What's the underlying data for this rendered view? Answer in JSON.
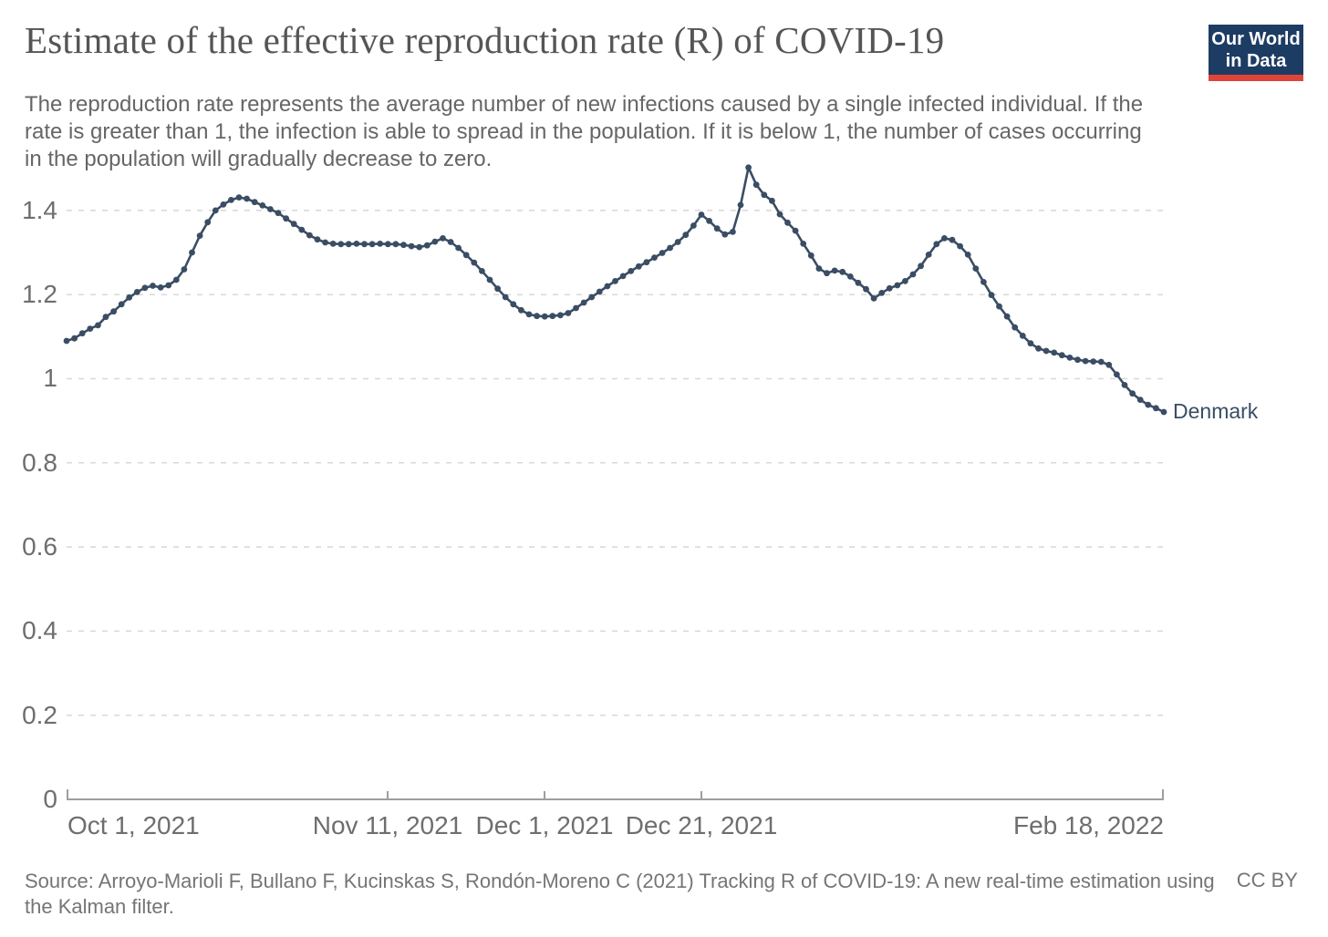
{
  "header": {
    "title": "Estimate of the effective reproduction rate (R) of COVID-19",
    "subtitle": "The reproduction rate represents the average number of new infections caused by a single infected individual. If the rate is greater than 1, the infection is able to spread in the population. If it is below 1, the number of cases occurring in the population will gradually decrease to zero.",
    "logo": {
      "line1": "Our World",
      "line2": "in Data"
    }
  },
  "chart": {
    "series_label": "Denmark",
    "y_ticks": [
      "0",
      "0.2",
      "0.4",
      "0.6",
      "0.8",
      "1",
      "1.2",
      "1.4"
    ],
    "x_ticks": [
      {
        "label": "Oct 1, 2021",
        "day": 0
      },
      {
        "label": "Nov 11, 2021",
        "day": 41
      },
      {
        "label": "Dec 1, 2021",
        "day": 61
      },
      {
        "label": "Dec 21, 2021",
        "day": 81
      },
      {
        "label": "Feb 18, 2022",
        "day": 140
      }
    ],
    "colors": {
      "series": "#3a4d64",
      "grid": "#d8d8d8",
      "axis": "#9e9e9e",
      "logo_navy": "#1d3c63",
      "logo_red": "#e04438"
    }
  },
  "chart_data": {
    "type": "line",
    "title": "Estimate of the effective reproduction rate (R) of COVID-19",
    "series": [
      {
        "name": "Denmark",
        "values": [
          1.09,
          1.096,
          1.108,
          1.119,
          1.127,
          1.147,
          1.16,
          1.177,
          1.193,
          1.206,
          1.216,
          1.221,
          1.217,
          1.222,
          1.235,
          1.26,
          1.3,
          1.34,
          1.372,
          1.4,
          1.414,
          1.425,
          1.431,
          1.428,
          1.42,
          1.412,
          1.403,
          1.394,
          1.381,
          1.368,
          1.354,
          1.341,
          1.331,
          1.324,
          1.321,
          1.32,
          1.32,
          1.321,
          1.32,
          1.32,
          1.321,
          1.32,
          1.32,
          1.318,
          1.315,
          1.313,
          1.317,
          1.326,
          1.334,
          1.325,
          1.311,
          1.294,
          1.276,
          1.256,
          1.235,
          1.214,
          1.194,
          1.177,
          1.163,
          1.153,
          1.149,
          1.148,
          1.149,
          1.151,
          1.156,
          1.168,
          1.181,
          1.194,
          1.207,
          1.22,
          1.232,
          1.244,
          1.256,
          1.267,
          1.277,
          1.288,
          1.299,
          1.311,
          1.325,
          1.342,
          1.364,
          1.39,
          1.375,
          1.357,
          1.343,
          1.349,
          1.413,
          1.502,
          1.461,
          1.437,
          1.423,
          1.391,
          1.371,
          1.352,
          1.321,
          1.293,
          1.262,
          1.251,
          1.257,
          1.254,
          1.243,
          1.228,
          1.213,
          1.191,
          1.204,
          1.215,
          1.222,
          1.232,
          1.248,
          1.268,
          1.295,
          1.32,
          1.334,
          1.33,
          1.315,
          1.295,
          1.262,
          1.23,
          1.199,
          1.172,
          1.148,
          1.122,
          1.102,
          1.084,
          1.072,
          1.066,
          1.062,
          1.056,
          1.05,
          1.045,
          1.042,
          1.041,
          1.04,
          1.033,
          1.01,
          0.985,
          0.965,
          0.95,
          0.938,
          0.93,
          0.921
        ]
      }
    ],
    "x_start": "Oct 1, 2021",
    "x_end": "Feb 18, 2022",
    "x_unit": "day",
    "x_tick_labels": [
      "Oct 1, 2021",
      "Nov 11, 2021",
      "Dec 1, 2021",
      "Dec 21, 2021",
      "Feb 18, 2022"
    ],
    "x_tick_days": [
      0,
      41,
      61,
      81,
      140
    ],
    "y_ticks": [
      0,
      0.2,
      0.4,
      0.6,
      0.8,
      1,
      1.2,
      1.4
    ],
    "ylim": [
      0,
      1.5
    ],
    "grid": "dashed-horizontal",
    "point_markers": true,
    "legend_position": "end-of-line-label"
  },
  "footer": {
    "source": "Source: Arroyo-Marioli F, Bullano F, Kucinskas S, Rondón-Moreno C (2021) Tracking R of COVID-19: A new real-time estimation using the Kalman filter.",
    "license": "CC BY"
  }
}
